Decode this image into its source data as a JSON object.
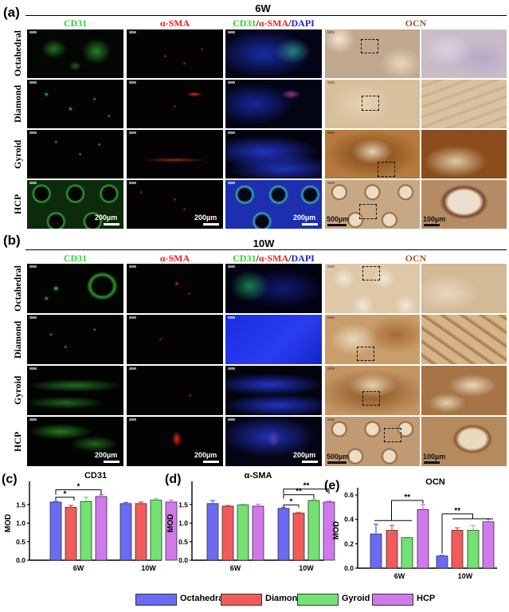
{
  "colors": {
    "octahedral": "#6a6bf2",
    "diamond": "#f25b5b",
    "gyroid": "#73e273",
    "hcp": "#d179ec"
  },
  "panel_a": {
    "label": "(a)",
    "title": "6W"
  },
  "panel_b": {
    "label": "(b)",
    "title": "10W"
  },
  "column_headers": {
    "cd31": "CD31",
    "asma": "α-SMA",
    "merge_cd31": "CD31",
    "merge_sep1": "/",
    "merge_asma": "α-SMA",
    "merge_sep2": "/",
    "merge_dapi": "DAPI",
    "ocn": "OCN"
  },
  "rows": [
    "Octahedral",
    "Diamond",
    "Gyroid",
    "HCP"
  ],
  "scale_bars": {
    "s200": "200µm",
    "s500": "500µm",
    "s100": "100µm"
  },
  "legend": {
    "items": [
      "Octahedral",
      "Diamond",
      "Gyroid",
      "HCP"
    ]
  },
  "chart_data": [
    {
      "panel": "(c)",
      "type": "bar",
      "title": "CD31",
      "ylabel": "MOD",
      "categories": [
        "6W",
        "10W"
      ],
      "ylim": [
        0,
        2.0
      ],
      "yticks": [
        0.0,
        0.5,
        1.0,
        1.5
      ],
      "series": [
        {
          "name": "Octahedral",
          "values": [
            1.57,
            1.53
          ],
          "errors": [
            0.02,
            0.03
          ]
        },
        {
          "name": "Diamond",
          "values": [
            1.43,
            1.53
          ],
          "errors": [
            0.05,
            0.04
          ]
        },
        {
          "name": "Gyroid",
          "values": [
            1.58,
            1.62
          ],
          "errors": [
            0.12,
            0.04
          ]
        },
        {
          "name": "HCP",
          "values": [
            1.72,
            1.57
          ],
          "errors": [
            0.05,
            0.05
          ]
        }
      ],
      "significance": [
        {
          "label": "*",
          "group": "6W"
        },
        {
          "label": "*",
          "group": "6W"
        }
      ]
    },
    {
      "panel": "(d)",
      "type": "bar",
      "title": "α-SMA",
      "ylabel": "MOD",
      "categories": [
        "6W",
        "10W"
      ],
      "ylim": [
        0,
        2.0
      ],
      "yticks": [
        0.0,
        0.5,
        1.0,
        1.5
      ],
      "series": [
        {
          "name": "Octahedral",
          "values": [
            1.53,
            1.4
          ],
          "errors": [
            0.08,
            0.02
          ]
        },
        {
          "name": "Diamond",
          "values": [
            1.46,
            1.27
          ],
          "errors": [
            0.02,
            0.02
          ]
        },
        {
          "name": "Gyroid",
          "values": [
            1.49,
            1.61
          ],
          "errors": [
            0.02,
            0.03
          ]
        },
        {
          "name": "HCP",
          "values": [
            1.46,
            1.57
          ],
          "errors": [
            0.05,
            0.03
          ]
        }
      ],
      "significance": [
        {
          "label": "**",
          "group": "10W"
        },
        {
          "label": "**",
          "group": "10W"
        },
        {
          "label": "*",
          "group": "10W"
        }
      ]
    },
    {
      "panel": "(e)",
      "type": "bar",
      "title": "OCN",
      "ylabel": "MOD",
      "categories": [
        "6W",
        "10W"
      ],
      "ylim": [
        0,
        0.62
      ],
      "yticks": [
        0.0,
        0.2,
        0.4,
        0.6
      ],
      "series": [
        {
          "name": "Octahedral",
          "values": [
            0.28,
            0.1
          ],
          "errors": [
            0.08,
            0.005
          ]
        },
        {
          "name": "Diamond",
          "values": [
            0.31,
            0.31
          ],
          "errors": [
            0.04,
            0.02
          ]
        },
        {
          "name": "Gyroid",
          "values": [
            0.25,
            0.31
          ],
          "errors": [
            0.0,
            0.04
          ]
        },
        {
          "name": "HCP",
          "values": [
            0.48,
            0.38
          ],
          "errors": [
            0.04,
            0.02
          ]
        }
      ],
      "significance": [
        {
          "label": "**",
          "group": "6W"
        },
        {
          "label": "**",
          "group": "10W"
        }
      ]
    }
  ]
}
